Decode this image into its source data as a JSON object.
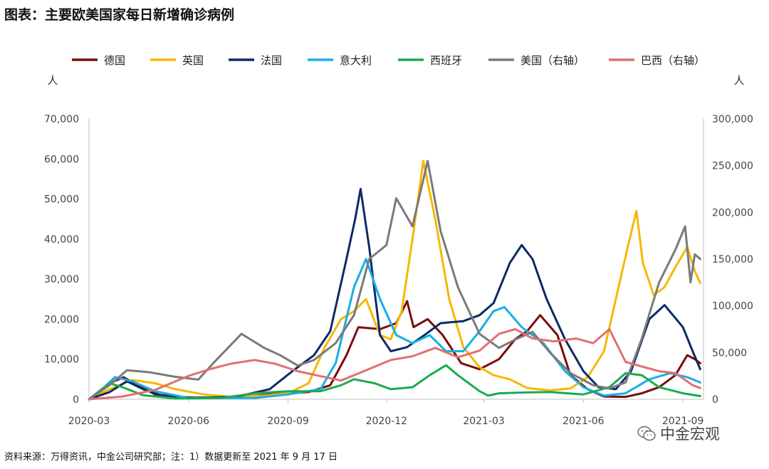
{
  "header": {
    "title": "图表：主要欧美国家每日新增确诊病例"
  },
  "footer": {
    "source": "资料来源：万得资讯，中金公司研究部；注：1）数据更新至 2021 年 9 月 17 日"
  },
  "watermark": {
    "text": "中金宏观",
    "icon": "wechat-icon"
  },
  "chart_data": {
    "type": "line",
    "title": "图表：主要欧美国家每日新增确诊病例",
    "left_axis": {
      "unit": "人",
      "range": [
        0,
        70000
      ],
      "ticks": [
        "0",
        "10,000",
        "20,000",
        "30,000",
        "40,000",
        "50,000",
        "60,000",
        "70,000"
      ]
    },
    "right_axis": {
      "unit": "人",
      "range": [
        0,
        300000
      ],
      "ticks": [
        "0",
        "50,000",
        "100,000",
        "150,000",
        "200,000",
        "250,000",
        "300,000"
      ]
    },
    "x_axis": {
      "range": [
        "2020-03-01",
        "2021-09-20"
      ],
      "ticks": [
        "2020-03",
        "2020-06",
        "2020-09",
        "2020-12",
        "2021-03",
        "2021-06",
        "2021-09"
      ]
    },
    "legend_position": "top",
    "grid": false,
    "series": [
      {
        "name": "德国",
        "axis": "left",
        "color": "#7a0c0c",
        "points": [
          [
            "2020-03-01",
            0
          ],
          [
            "2020-03-20",
            4000
          ],
          [
            "2020-04-02",
            5500
          ],
          [
            "2020-04-15",
            3500
          ],
          [
            "2020-05-01",
            1200
          ],
          [
            "2020-06-01",
            400
          ],
          [
            "2020-07-15",
            500
          ],
          [
            "2020-08-20",
            1300
          ],
          [
            "2020-09-20",
            1800
          ],
          [
            "2020-10-10",
            3500
          ],
          [
            "2020-10-25",
            11000
          ],
          [
            "2020-11-05",
            18000
          ],
          [
            "2020-11-25",
            17500
          ],
          [
            "2020-12-10",
            19000
          ],
          [
            "2020-12-20",
            24500
          ],
          [
            "2020-12-26",
            18000
          ],
          [
            "2021-01-08",
            20000
          ],
          [
            "2021-01-22",
            16000
          ],
          [
            "2021-02-08",
            9000
          ],
          [
            "2021-02-25",
            7500
          ],
          [
            "2021-03-15",
            10000
          ],
          [
            "2021-03-30",
            15000
          ],
          [
            "2021-04-10",
            17000
          ],
          [
            "2021-04-22",
            21000
          ],
          [
            "2021-05-08",
            16000
          ],
          [
            "2021-05-20",
            6000
          ],
          [
            "2021-06-05",
            2500
          ],
          [
            "2021-06-20",
            700
          ],
          [
            "2021-07-10",
            600
          ],
          [
            "2021-07-25",
            1500
          ],
          [
            "2021-08-10",
            3000
          ],
          [
            "2021-08-25",
            6000
          ],
          [
            "2021-09-05",
            11000
          ],
          [
            "2021-09-12",
            10000
          ],
          [
            "2021-09-17",
            9000
          ]
        ]
      },
      {
        "name": "英国",
        "axis": "left",
        "color": "#f5b800",
        "points": [
          [
            "2020-03-01",
            0
          ],
          [
            "2020-03-20",
            2500
          ],
          [
            "2020-04-10",
            4800
          ],
          [
            "2020-05-01",
            4000
          ],
          [
            "2020-05-20",
            2500
          ],
          [
            "2020-06-15",
            1200
          ],
          [
            "2020-07-10",
            600
          ],
          [
            "2020-08-10",
            900
          ],
          [
            "2020-09-01",
            1500
          ],
          [
            "2020-09-20",
            4000
          ],
          [
            "2020-10-05",
            13000
          ],
          [
            "2020-10-20",
            20000
          ],
          [
            "2020-11-01",
            22000
          ],
          [
            "2020-11-12",
            25000
          ],
          [
            "2020-11-25",
            16000
          ],
          [
            "2020-12-05",
            15000
          ],
          [
            "2020-12-15",
            22000
          ],
          [
            "2020-12-25",
            40000
          ],
          [
            "2021-01-04",
            59500
          ],
          [
            "2021-01-15",
            45000
          ],
          [
            "2021-01-28",
            25000
          ],
          [
            "2021-02-10",
            13000
          ],
          [
            "2021-02-25",
            8000
          ],
          [
            "2021-03-10",
            6000
          ],
          [
            "2021-03-25",
            5000
          ],
          [
            "2021-04-10",
            2800
          ],
          [
            "2021-05-01",
            2200
          ],
          [
            "2021-05-20",
            2700
          ],
          [
            "2021-06-05",
            5500
          ],
          [
            "2021-06-20",
            12000
          ],
          [
            "2021-07-01",
            25000
          ],
          [
            "2021-07-12",
            38000
          ],
          [
            "2021-07-20",
            47000
          ],
          [
            "2021-07-26",
            34000
          ],
          [
            "2021-08-05",
            26000
          ],
          [
            "2021-08-15",
            28000
          ],
          [
            "2021-08-25",
            33000
          ],
          [
            "2021-09-05",
            38000
          ],
          [
            "2021-09-12",
            32000
          ],
          [
            "2021-09-17",
            29000
          ]
        ]
      },
      {
        "name": "法国",
        "axis": "left",
        "color": "#0d2a66",
        "points": [
          [
            "2020-03-01",
            0
          ],
          [
            "2020-03-20",
            1800
          ],
          [
            "2020-04-05",
            4500
          ],
          [
            "2020-04-20",
            2500
          ],
          [
            "2020-05-10",
            700
          ],
          [
            "2020-06-10",
            400
          ],
          [
            "2020-07-15",
            600
          ],
          [
            "2020-08-15",
            2500
          ],
          [
            "2020-09-05",
            7000
          ],
          [
            "2020-09-25",
            11000
          ],
          [
            "2020-10-10",
            17000
          ],
          [
            "2020-10-25",
            35000
          ],
          [
            "2020-11-02",
            45000
          ],
          [
            "2020-11-07",
            52500
          ],
          [
            "2020-11-15",
            38000
          ],
          [
            "2020-11-25",
            16000
          ],
          [
            "2020-12-05",
            12000
          ],
          [
            "2020-12-20",
            13000
          ],
          [
            "2021-01-05",
            16000
          ],
          [
            "2021-01-20",
            19000
          ],
          [
            "2021-02-10",
            19500
          ],
          [
            "2021-02-25",
            21000
          ],
          [
            "2021-03-10",
            24000
          ],
          [
            "2021-03-25",
            34000
          ],
          [
            "2021-04-05",
            38500
          ],
          [
            "2021-04-15",
            35000
          ],
          [
            "2021-04-28",
            25000
          ],
          [
            "2021-05-15",
            15000
          ],
          [
            "2021-06-01",
            7000
          ],
          [
            "2021-06-15",
            3000
          ],
          [
            "2021-07-01",
            2500
          ],
          [
            "2021-07-15",
            7000
          ],
          [
            "2021-08-01",
            20000
          ],
          [
            "2021-08-15",
            23500
          ],
          [
            "2021-09-01",
            18000
          ],
          [
            "2021-09-10",
            12000
          ],
          [
            "2021-09-17",
            7500
          ]
        ]
      },
      {
        "name": "意大利",
        "axis": "left",
        "color": "#19aee6",
        "points": [
          [
            "2020-03-01",
            0
          ],
          [
            "2020-03-15",
            3000
          ],
          [
            "2020-03-25",
            5500
          ],
          [
            "2020-04-10",
            4500
          ],
          [
            "2020-05-01",
            2000
          ],
          [
            "2020-06-01",
            300
          ],
          [
            "2020-08-01",
            300
          ],
          [
            "2020-09-01",
            1200
          ],
          [
            "2020-10-01",
            2500
          ],
          [
            "2020-10-15",
            9000
          ],
          [
            "2020-11-01",
            28000
          ],
          [
            "2020-11-12",
            35000
          ],
          [
            "2020-11-25",
            25000
          ],
          [
            "2020-12-10",
            16000
          ],
          [
            "2020-12-25",
            14000
          ],
          [
            "2021-01-10",
            16000
          ],
          [
            "2021-01-25",
            12000
          ],
          [
            "2021-02-10",
            12000
          ],
          [
            "2021-02-25",
            17000
          ],
          [
            "2021-03-10",
            22000
          ],
          [
            "2021-03-20",
            23000
          ],
          [
            "2021-04-05",
            18000
          ],
          [
            "2021-04-25",
            14000
          ],
          [
            "2021-05-15",
            7000
          ],
          [
            "2021-06-01",
            3000
          ],
          [
            "2021-06-20",
            900
          ],
          [
            "2021-07-10",
            1500
          ],
          [
            "2021-08-01",
            5000
          ],
          [
            "2021-08-20",
            6500
          ],
          [
            "2021-09-05",
            5500
          ],
          [
            "2021-09-17",
            4200
          ]
        ]
      },
      {
        "name": "西班牙",
        "axis": "left",
        "color": "#1aab50",
        "points": [
          [
            "2020-03-01",
            0
          ],
          [
            "2020-03-20",
            4000
          ],
          [
            "2020-04-01",
            3000
          ],
          [
            "2020-04-20",
            1000
          ],
          [
            "2020-05-20",
            200
          ],
          [
            "2020-07-01",
            300
          ],
          [
            "2020-08-01",
            1500
          ],
          [
            "2020-09-01",
            2000
          ],
          [
            "2020-10-01",
            2000
          ],
          [
            "2020-10-20",
            3500
          ],
          [
            "2020-11-01",
            5000
          ],
          [
            "2020-11-20",
            4000
          ],
          [
            "2020-12-05",
            2500
          ],
          [
            "2020-12-25",
            3000
          ],
          [
            "2021-01-10",
            6000
          ],
          [
            "2021-01-25",
            8500
          ],
          [
            "2021-02-05",
            6000
          ],
          [
            "2021-02-25",
            2000
          ],
          [
            "2021-03-05",
            900
          ],
          [
            "2021-03-15",
            1500
          ],
          [
            "2021-04-10",
            1700
          ],
          [
            "2021-05-01",
            1800
          ],
          [
            "2021-06-01",
            1200
          ],
          [
            "2021-06-25",
            3000
          ],
          [
            "2021-07-10",
            6500
          ],
          [
            "2021-07-25",
            6000
          ],
          [
            "2021-08-10",
            3000
          ],
          [
            "2021-09-01",
            1500
          ],
          [
            "2021-09-17",
            800
          ]
        ]
      },
      {
        "name": "美国（右轴）",
        "axis": "right",
        "color": "#7a7a7a",
        "points": [
          [
            "2020-03-01",
            0
          ],
          [
            "2020-03-20",
            15000
          ],
          [
            "2020-04-05",
            31000
          ],
          [
            "2020-04-25",
            29000
          ],
          [
            "2020-05-20",
            24000
          ],
          [
            "2020-06-10",
            21000
          ],
          [
            "2020-06-25",
            40000
          ],
          [
            "2020-07-20",
            70000
          ],
          [
            "2020-08-10",
            55000
          ],
          [
            "2020-08-25",
            47000
          ],
          [
            "2020-09-10",
            36000
          ],
          [
            "2020-09-25",
            42000
          ],
          [
            "2020-10-15",
            60000
          ],
          [
            "2020-11-01",
            90000
          ],
          [
            "2020-11-15",
            150000
          ],
          [
            "2020-12-01",
            165000
          ],
          [
            "2020-12-10",
            215000
          ],
          [
            "2020-12-25",
            185000
          ],
          [
            "2021-01-08",
            255000
          ],
          [
            "2021-01-20",
            180000
          ],
          [
            "2021-02-05",
            120000
          ],
          [
            "2021-02-25",
            70000
          ],
          [
            "2021-03-15",
            55000
          ],
          [
            "2021-04-01",
            65000
          ],
          [
            "2021-04-15",
            72000
          ],
          [
            "2021-05-01",
            50000
          ],
          [
            "2021-05-20",
            28000
          ],
          [
            "2021-06-10",
            15000
          ],
          [
            "2021-06-25",
            11500
          ],
          [
            "2021-07-10",
            18000
          ],
          [
            "2021-07-25",
            65000
          ],
          [
            "2021-08-10",
            125000
          ],
          [
            "2021-08-25",
            160000
          ],
          [
            "2021-09-03",
            185000
          ],
          [
            "2021-09-08",
            125000
          ],
          [
            "2021-09-12",
            155000
          ],
          [
            "2021-09-17",
            150000
          ]
        ]
      },
      {
        "name": "巴西（右轴）",
        "axis": "right",
        "color": "#e07070",
        "points": [
          [
            "2020-03-01",
            0
          ],
          [
            "2020-04-01",
            3000
          ],
          [
            "2020-05-01",
            10000
          ],
          [
            "2020-06-01",
            25000
          ],
          [
            "2020-06-20",
            32000
          ],
          [
            "2020-07-10",
            38000
          ],
          [
            "2020-08-01",
            42000
          ],
          [
            "2020-08-20",
            38000
          ],
          [
            "2020-09-10",
            30000
          ],
          [
            "2020-09-30",
            25000
          ],
          [
            "2020-10-20",
            20000
          ],
          [
            "2020-11-10",
            30000
          ],
          [
            "2020-12-05",
            42000
          ],
          [
            "2020-12-25",
            46000
          ],
          [
            "2021-01-15",
            55000
          ],
          [
            "2021-02-05",
            45000
          ],
          [
            "2021-02-25",
            52000
          ],
          [
            "2021-03-15",
            70000
          ],
          [
            "2021-03-30",
            75000
          ],
          [
            "2021-04-15",
            65000
          ],
          [
            "2021-05-05",
            62000
          ],
          [
            "2021-05-25",
            65000
          ],
          [
            "2021-06-10",
            60000
          ],
          [
            "2021-06-25",
            75000
          ],
          [
            "2021-07-10",
            40000
          ],
          [
            "2021-07-25",
            35000
          ],
          [
            "2021-08-10",
            30000
          ],
          [
            "2021-08-25",
            28000
          ],
          [
            "2021-09-10",
            15000
          ],
          [
            "2021-09-17",
            12000
          ]
        ]
      }
    ]
  }
}
